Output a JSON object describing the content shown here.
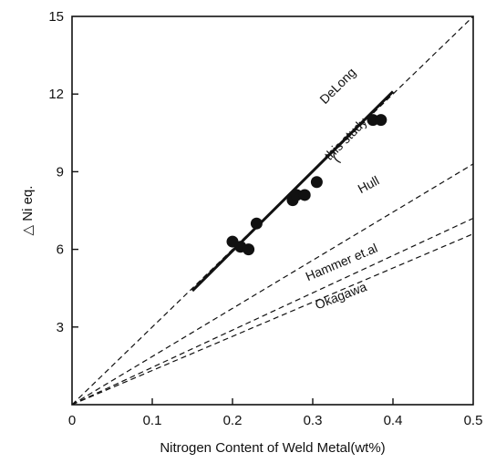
{
  "chart_data": {
    "type": "scatter",
    "title": "",
    "xlabel": "Nitrogen Content of Weld Metal(wt%)",
    "ylabel": "△ Ni eq.",
    "xlim": [
      0,
      0.5
    ],
    "ylim": [
      0,
      15
    ],
    "x_ticks": [
      "0",
      "0.1",
      "0.2",
      "0.3",
      "0.4",
      "0.5"
    ],
    "y_ticks": [
      "3",
      "6",
      "9",
      "12",
      "15"
    ],
    "grid": false,
    "legend": "none (series labeled inline)",
    "points": [
      {
        "x": 0.2,
        "y": 6.3
      },
      {
        "x": 0.21,
        "y": 6.1
      },
      {
        "x": 0.22,
        "y": 6.0
      },
      {
        "x": 0.23,
        "y": 7.0
      },
      {
        "x": 0.275,
        "y": 7.9
      },
      {
        "x": 0.28,
        "y": 8.1
      },
      {
        "x": 0.29,
        "y": 8.1
      },
      {
        "x": 0.305,
        "y": 8.6
      },
      {
        "x": 0.375,
        "y": 11.0
      },
      {
        "x": 0.385,
        "y": 11.0
      }
    ],
    "series": [
      {
        "name": "DeLong",
        "style": "dashed",
        "x": [
          0,
          0.5
        ],
        "y": [
          0,
          15
        ]
      },
      {
        "name": "this study",
        "style": "solid",
        "x": [
          0.15,
          0.4
        ],
        "y": [
          4.4,
          12.1
        ]
      },
      {
        "name": "Hull",
        "style": "dashed",
        "x": [
          0,
          0.5
        ],
        "y": [
          0,
          9.3
        ]
      },
      {
        "name": "Hammer et.al",
        "style": "dashed",
        "x": [
          0,
          0.5
        ],
        "y": [
          0,
          7.2
        ]
      },
      {
        "name": "Okagawa",
        "style": "dashed",
        "x": [
          0,
          0.5
        ],
        "y": [
          0,
          6.6
        ]
      }
    ],
    "labels": [
      {
        "series": "DeLong",
        "x": 0.335,
        "y": 12.2,
        "angle": -45
      },
      {
        "series": "this study",
        "x": 0.345,
        "y": 10.15,
        "angle": -45
      },
      {
        "series": "Hull",
        "x": 0.372,
        "y": 8.35,
        "angle": -28
      },
      {
        "series": "Hammer et.al",
        "x": 0.338,
        "y": 5.35,
        "angle": -23
      },
      {
        "series": "Okagawa",
        "x": 0.337,
        "y": 4.05,
        "angle": -21
      }
    ]
  }
}
